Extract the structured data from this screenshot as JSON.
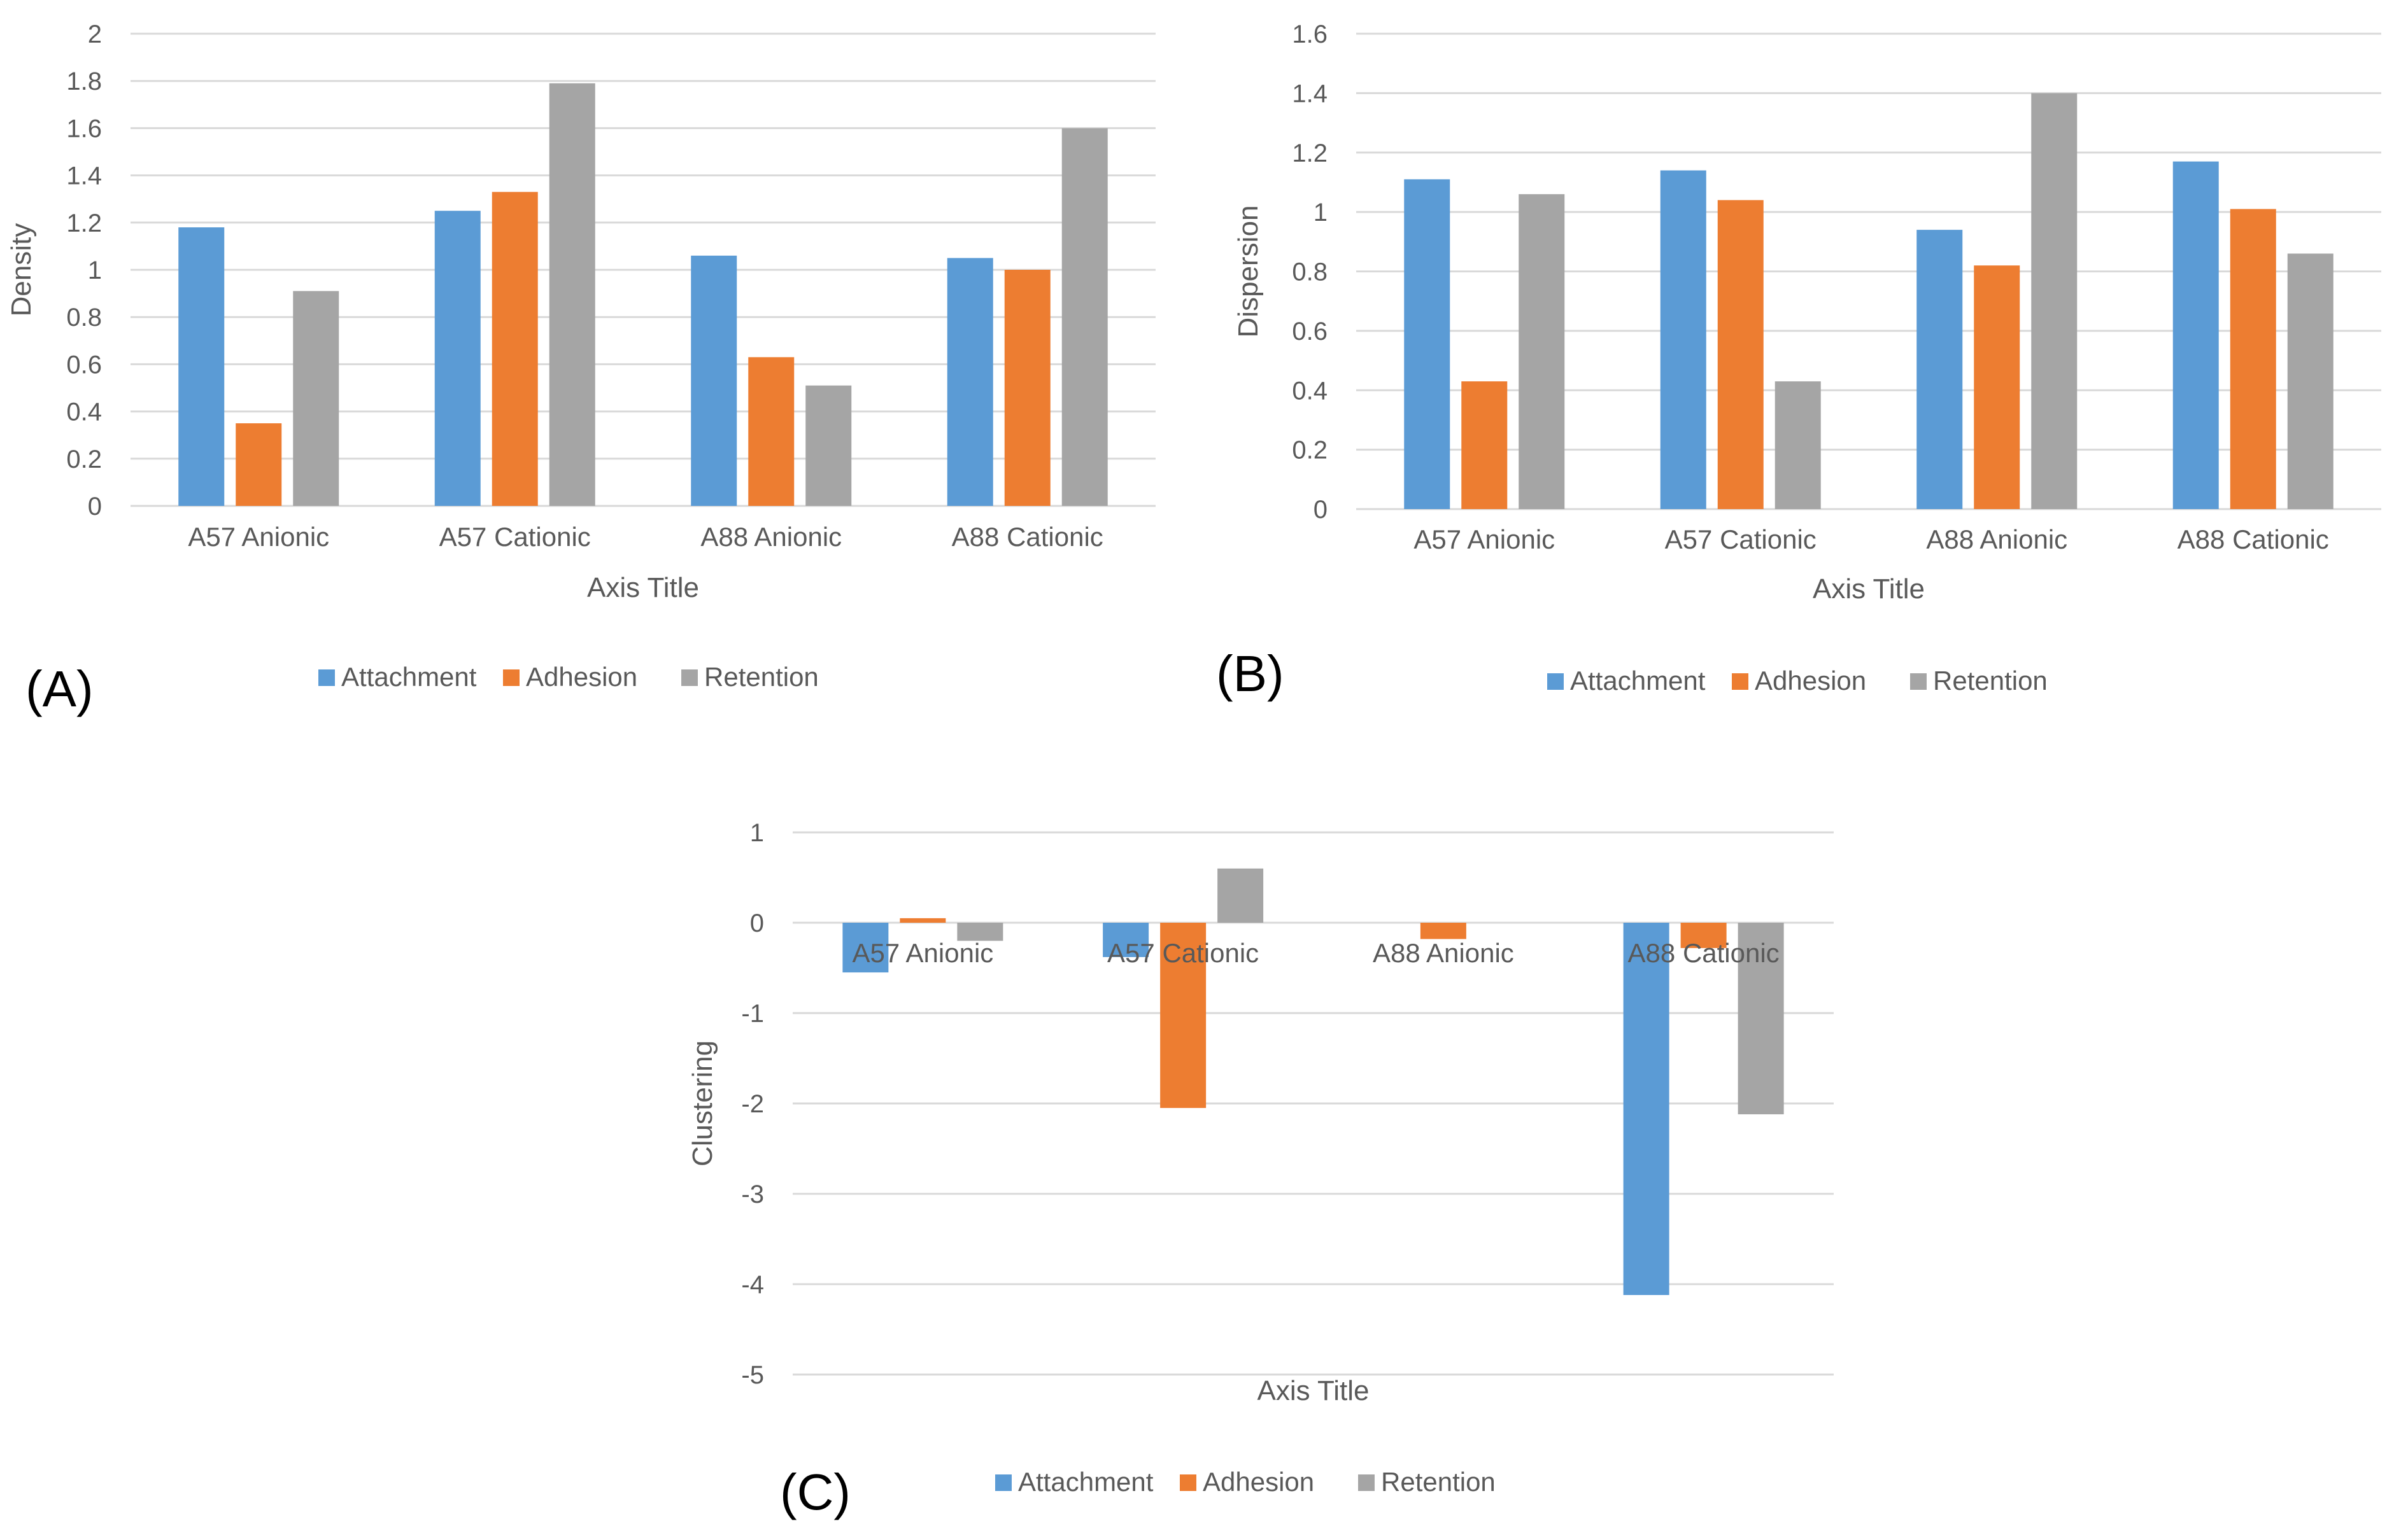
{
  "colors": {
    "attachment": "#5B9BD5",
    "adhesion": "#ED7D31",
    "retention": "#A5A5A5",
    "grid": "#D9D9D9",
    "text": "#595959",
    "panel_label": "#000000"
  },
  "chart_data": [
    {
      "id": "A",
      "panel_label": "(A)",
      "type": "bar",
      "title": "",
      "xlabel": "Axis Title",
      "ylabel": "Density",
      "categories": [
        "A57 Anionic",
        "A57 Cationic",
        "A88 Anionic",
        "A88 Cationic"
      ],
      "ylim": [
        0,
        2
      ],
      "yticks": [
        0,
        0.2,
        0.4,
        0.6,
        0.8,
        1,
        1.2,
        1.4,
        1.6,
        1.8,
        2
      ],
      "ytick_labels": [
        "0",
        "0.2",
        "0.4",
        "0.6",
        "0.8",
        "1",
        "1.2",
        "1.4",
        "1.6",
        "1.8",
        "2"
      ],
      "grid": true,
      "legend_position": "bottom",
      "series": [
        {
          "name": "Attachment",
          "color_key": "attachment",
          "values": [
            1.18,
            1.25,
            1.06,
            1.05
          ]
        },
        {
          "name": "Adhesion",
          "color_key": "adhesion",
          "values": [
            0.35,
            1.33,
            0.63,
            1.0
          ]
        },
        {
          "name": "Retention",
          "color_key": "retention",
          "values": [
            0.91,
            1.79,
            0.51,
            1.6
          ]
        }
      ]
    },
    {
      "id": "B",
      "panel_label": "(B)",
      "type": "bar",
      "title": "",
      "xlabel": "Axis Title",
      "ylabel": "Dispersion",
      "categories": [
        "A57 Anionic",
        "A57 Cationic",
        "A88 Anionic",
        "A88 Cationic"
      ],
      "ylim": [
        0,
        1.6
      ],
      "yticks": [
        0,
        0.2,
        0.4,
        0.6,
        0.8,
        1,
        1.2,
        1.4,
        1.6
      ],
      "ytick_labels": [
        "0",
        "0.2",
        "0.4",
        "0.6",
        "0.8",
        "1",
        "1.2",
        "1.4",
        "1.6"
      ],
      "grid": true,
      "legend_position": "bottom",
      "series": [
        {
          "name": "Attachment",
          "color_key": "attachment",
          "values": [
            1.11,
            1.14,
            0.94,
            1.17
          ]
        },
        {
          "name": "Adhesion",
          "color_key": "adhesion",
          "values": [
            0.43,
            1.04,
            0.82,
            1.01
          ]
        },
        {
          "name": "Retention",
          "color_key": "retention",
          "values": [
            1.06,
            0.43,
            1.4,
            0.86
          ]
        }
      ]
    },
    {
      "id": "C",
      "panel_label": "(C)",
      "type": "bar",
      "title": "",
      "xlabel": "Axis Title",
      "ylabel": "Clustering",
      "categories": [
        "A57 Anionic",
        "A57 Cationic",
        "A88 Anionic",
        "A88 Cationic"
      ],
      "ylim": [
        -5,
        1
      ],
      "yticks": [
        -5,
        -4,
        -3,
        -2,
        -1,
        0,
        1
      ],
      "ytick_labels": [
        "-5",
        "-4",
        "-3",
        "-2",
        "-1",
        "0",
        "1"
      ],
      "grid": true,
      "legend_position": "bottom",
      "series": [
        {
          "name": "Attachment",
          "color_key": "attachment",
          "values": [
            -0.55,
            -0.38,
            0.0,
            -4.12
          ]
        },
        {
          "name": "Adhesion",
          "color_key": "adhesion",
          "values": [
            0.05,
            -2.05,
            -0.18,
            -0.28
          ]
        },
        {
          "name": "Retention",
          "color_key": "retention",
          "values": [
            -0.2,
            0.6,
            0.0,
            -2.12
          ]
        }
      ]
    }
  ]
}
